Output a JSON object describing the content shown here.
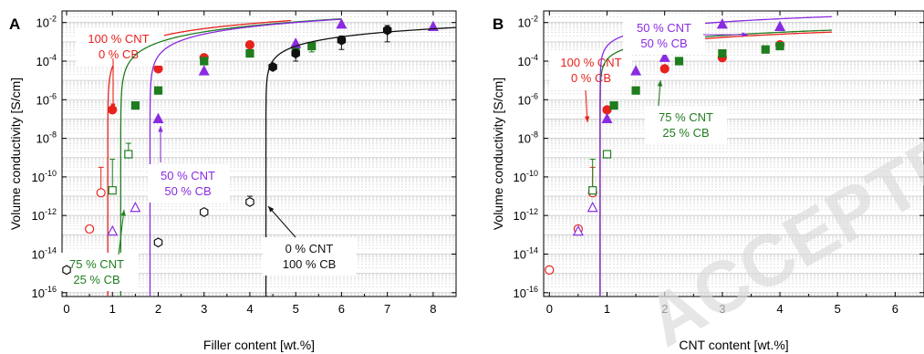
{
  "colors": {
    "cnt100": "#e8221c",
    "cnt75": "#1f7d1f",
    "cnt50": "#8a2be2",
    "cnt0": "#111111",
    "grid": "#c9c9c9",
    "watermark": "#dcdcdc"
  },
  "watermark": "ACCEPTED MANUSCRIPT",
  "chart_data": [
    {
      "panel": "A",
      "type": "scatter",
      "xlabel": "Filler content [wt.%]",
      "ylabel": "Volume conductivity [S/cm]",
      "xlim": [
        -0.1,
        8.5
      ],
      "ylim_log10": [
        -16.2,
        -1.4
      ],
      "y_scale": "log",
      "x_ticks": [
        "0",
        "1",
        "2",
        "3",
        "4",
        "5",
        "6",
        "7",
        "8"
      ],
      "y_ticks": [
        "10-16",
        "10-14",
        "10-12",
        "10-10",
        "10-8",
        "10-6",
        "10-4",
        "10-2"
      ],
      "grid": true,
      "legend": "none",
      "series": [
        {
          "key": "cnt100",
          "label": "100 % CNT\n0 % CB",
          "marker": "circle",
          "points": [
            {
              "x": 0,
              "y": 1.5e-15,
              "filled": false,
              "err": 1.7e-15
            },
            {
              "x": 0.5,
              "y": 2e-13,
              "filled": false
            },
            {
              "x": 0.75,
              "y": 1.5e-11,
              "filled": false,
              "err_hi": 3e-10
            },
            {
              "x": 1.0,
              "y": 3e-07,
              "filled": true,
              "err_lo": 2e-08
            },
            {
              "x": 2.0,
              "y": 4e-05,
              "filled": true
            },
            {
              "x": 3.0,
              "y": 0.00015,
              "filled": true
            },
            {
              "x": 4.0,
              "y": 0.0007,
              "filled": true
            }
          ],
          "fit": {
            "xc": 0.9,
            "logA": -2.8,
            "t": 1.5,
            "xmax": 4.9
          }
        },
        {
          "key": "cnt75",
          "label": "75 % CNT\n25 % CB",
          "marker": "square",
          "points": [
            {
              "x": 1.0,
              "y": 2e-11,
              "filled": false,
              "err_hi": 8e-10
            },
            {
              "x": 1.35,
              "y": 1.5e-09,
              "filled": false,
              "err_hi": 4e-09
            },
            {
              "x": 1.5,
              "y": 5e-07,
              "filled": true
            },
            {
              "x": 2.0,
              "y": 3e-06,
              "filled": true
            },
            {
              "x": 3.0,
              "y": 0.0001,
              "filled": true
            },
            {
              "x": 4.0,
              "y": 0.00025,
              "filled": true
            },
            {
              "x": 5.0,
              "y": 0.0004,
              "filled": true
            },
            {
              "x": 5.35,
              "y": 0.0006,
              "filled": true,
              "err": 0.0003
            }
          ],
          "fit": {
            "xc": 1.18,
            "logA": -2.9,
            "t": 1.6,
            "xmax": 6.0
          }
        },
        {
          "key": "cnt50",
          "label": "50 % CNT\n50 % CB",
          "marker": "triangle",
          "points": [
            {
              "x": 1.0,
              "y": 1.5e-13,
              "filled": false
            },
            {
              "x": 1.5,
              "y": 2.5e-12,
              "filled": false
            },
            {
              "x": 2.0,
              "y": 1e-07,
              "filled": true,
              "err_lo": 3e-08
            },
            {
              "x": 3.0,
              "y": 3e-05,
              "filled": true
            },
            {
              "x": 5.0,
              "y": 0.0008,
              "filled": true
            },
            {
              "x": 6.0,
              "y": 0.008,
              "filled": true
            },
            {
              "x": 8.0,
              "y": 0.006,
              "filled": true
            }
          ],
          "fit": {
            "xc": 1.82,
            "logA": -2.7,
            "t": 1.4,
            "xmax": 6.0
          }
        },
        {
          "key": "cnt0",
          "label": "0    % CNT\n100 % CB",
          "marker": "hexagon",
          "points": [
            {
              "x": 0,
              "y": 1.5e-15,
              "filled": false
            },
            {
              "x": 2.0,
              "y": 4e-14,
              "filled": false
            },
            {
              "x": 3.0,
              "y": 1.5e-12,
              "filled": false
            },
            {
              "x": 4.0,
              "y": 5e-12,
              "filled": false,
              "err_hi": 5e-12
            },
            {
              "x": 4.5,
              "y": 5e-05,
              "filled": true
            },
            {
              "x": 5.0,
              "y": 0.00025,
              "filled": true,
              "err": 0.00015
            },
            {
              "x": 6.0,
              "y": 0.0012,
              "filled": true,
              "err": 0.0008
            },
            {
              "x": 7.0,
              "y": 0.004,
              "filled": true,
              "err": 0.003
            }
          ],
          "fit": {
            "xc": 4.35,
            "logA": -3.0,
            "t": 1.2,
            "xmax": 8.5
          }
        }
      ]
    },
    {
      "panel": "B",
      "type": "scatter",
      "xlabel": "CNT content [wt.%]",
      "ylabel": "Volume conductivity [S/cm]",
      "xlim": [
        -0.1,
        6.5
      ],
      "ylim_log10": [
        -16.2,
        -1.4
      ],
      "y_scale": "log",
      "x_ticks": [
        "0",
        "1",
        "2",
        "3",
        "4",
        "5",
        "6"
      ],
      "y_ticks": [
        "10-16",
        "10-14",
        "10-12",
        "10-10",
        "10-8",
        "10-6",
        "10-4",
        "10-2"
      ],
      "grid": true,
      "legend": "none",
      "series": [
        {
          "key": "cnt100",
          "label": "100 % CNT\n0 % CB",
          "marker": "circle",
          "points": [
            {
              "x": 0,
              "y": 1.5e-15,
              "filled": false
            },
            {
              "x": 0.5,
              "y": 2e-13,
              "filled": false
            },
            {
              "x": 0.75,
              "y": 1.5e-11,
              "filled": false,
              "err_hi": 3e-10
            },
            {
              "x": 1.0,
              "y": 3e-07,
              "filled": true
            },
            {
              "x": 2.0,
              "y": 4e-05,
              "filled": true
            },
            {
              "x": 3.0,
              "y": 0.00015,
              "filled": true
            },
            {
              "x": 4.0,
              "y": 0.0007,
              "filled": true
            }
          ],
          "fit": {
            "xc": 0.88,
            "logA": -3.1,
            "t": 1.0,
            "xmax": 4.9
          }
        },
        {
          "key": "cnt75",
          "label": "75 % CNT\n25 % CB",
          "marker": "square",
          "points": [
            {
              "x": 0.75,
              "y": 2e-11,
              "filled": false,
              "err_hi": 8e-10
            },
            {
              "x": 1.0,
              "y": 1.5e-09,
              "filled": false
            },
            {
              "x": 1.12,
              "y": 5e-07,
              "filled": true
            },
            {
              "x": 1.5,
              "y": 3e-06,
              "filled": true
            },
            {
              "x": 2.25,
              "y": 0.0001,
              "filled": true
            },
            {
              "x": 3.0,
              "y": 0.00025,
              "filled": true
            },
            {
              "x": 3.75,
              "y": 0.0004,
              "filled": true
            },
            {
              "x": 4.0,
              "y": 0.0006,
              "filled": true
            }
          ],
          "fit": {
            "xc": 0.88,
            "logA": -3.0,
            "t": 1.0,
            "xmax": 4.9
          }
        },
        {
          "key": "cnt50",
          "label": "50 % CNT\n50 % CB",
          "marker": "triangle",
          "points": [
            {
              "x": 0.5,
              "y": 1.5e-13,
              "filled": false
            },
            {
              "x": 0.75,
              "y": 2.5e-12,
              "filled": false
            },
            {
              "x": 1.0,
              "y": 1e-07,
              "filled": true
            },
            {
              "x": 1.5,
              "y": 3e-05,
              "filled": true
            },
            {
              "x": 2.0,
              "y": 0.00015,
              "filled": true
            },
            {
              "x": 2.5,
              "y": 0.0008,
              "filled": true
            },
            {
              "x": 3.0,
              "y": 0.008,
              "filled": true
            },
            {
              "x": 4.0,
              "y": 0.006,
              "filled": true
            }
          ],
          "fit": {
            "xc": 0.88,
            "logA": -2.3,
            "t": 1.0,
            "xmax": 4.9
          }
        }
      ]
    }
  ]
}
